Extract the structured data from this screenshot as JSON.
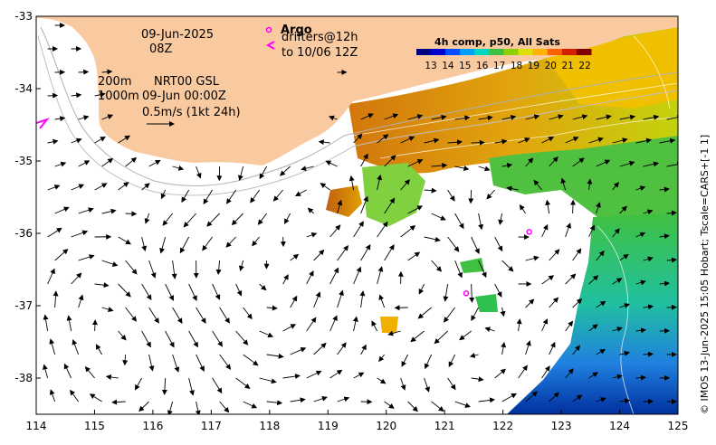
{
  "map": {
    "date": "09-Jun-2025",
    "time": "08Z",
    "contour_label_1": "200m",
    "contour_label_2": "1000m",
    "product": "NRT00 GSL",
    "product_time": "09-Jun 00:00Z",
    "scale_label": "0.5m/s (1kt 24h)",
    "argo_label": "Argo",
    "drifters_label": "drifters@12h",
    "drifters_until": "to 10/06 12Z",
    "credit": "© IMOS 13-Jun-2025 15:05 Hobart; Tscale=CARS+[-1 1]"
  },
  "colorbar": {
    "title": "4h comp, p50, All Sats",
    "labels": [
      "13",
      "14",
      "15",
      "16",
      "17",
      "18",
      "19",
      "20",
      "21",
      "22"
    ],
    "colors": [
      "#000080",
      "#0000d0",
      "#0050ff",
      "#00a0ff",
      "#00d8c0",
      "#40c040",
      "#90d000",
      "#e0e000",
      "#ffb000",
      "#ff6000",
      "#d02000",
      "#800000"
    ]
  },
  "axes": {
    "x_ticks": [
      "114",
      "115",
      "116",
      "117",
      "118",
      "119",
      "120",
      "121",
      "122",
      "123",
      "124",
      "125"
    ],
    "y_ticks": [
      "-33",
      "-34",
      "-35",
      "-36",
      "-37",
      "-38"
    ],
    "lon_range": [
      114,
      125
    ],
    "lat_range": [
      -38.5,
      -33
    ]
  },
  "colors": {
    "land": "#f9c9a0",
    "argo": "#ff00ff",
    "drifter": "#ff00ff"
  },
  "argo_floats": [
    {
      "lon": 122.45,
      "lat": -35.98
    },
    {
      "lon": 121.37,
      "lat": -36.83
    }
  ]
}
